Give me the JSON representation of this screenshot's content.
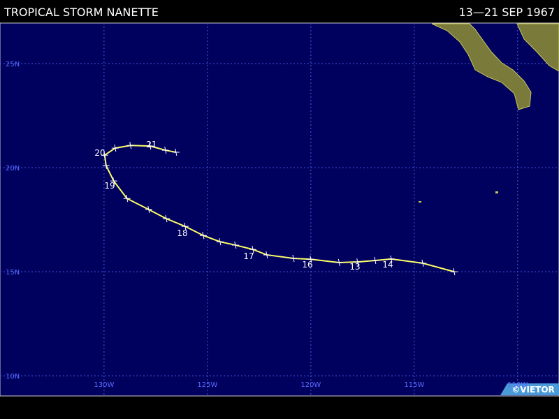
{
  "chart_data": {
    "type": "line",
    "title": "TROPICAL STORM NANETTE",
    "subtitle": "13—21 SEP 1967",
    "credit": "©VIETOR",
    "color": "#ffff66",
    "x": [
      -113.07,
      -114.59,
      -116.11,
      -116.89,
      -117.74,
      -118.63,
      -120.0,
      -120.84,
      -122.13,
      -122.8,
      -123.65,
      -124.39,
      -125.2,
      -126.08,
      -126.99,
      -127.84,
      -128.89,
      -129.53,
      -129.9,
      -129.97,
      -129.46,
      -128.72,
      -127.77,
      -127.03,
      -126.52
    ],
    "values": [
      15.0,
      15.41,
      15.61,
      15.54,
      15.47,
      15.44,
      15.6,
      15.64,
      15.81,
      16.07,
      16.28,
      16.44,
      16.74,
      17.18,
      17.55,
      17.99,
      18.52,
      19.36,
      20.1,
      20.6,
      20.94,
      21.07,
      21.04,
      20.84,
      20.74
    ],
    "day_labels": [
      "13",
      "14",
      "16",
      "17",
      "18",
      "19",
      "20",
      "21"
    ],
    "xlim": [
      -135.03,
      -108.0
    ],
    "ylim": [
      9.03,
      26.95
    ],
    "xticks": [
      {
        "value": -130,
        "label": "130W"
      },
      {
        "value": -125,
        "label": "125W"
      },
      {
        "value": -120,
        "label": "120W"
      },
      {
        "value": -115,
        "label": "115W"
      },
      {
        "value": -110,
        "label": "110W"
      }
    ],
    "yticks": [
      {
        "value": 25,
        "label": "25N"
      },
      {
        "value": 20,
        "label": "20N"
      },
      {
        "value": 15,
        "label": "15N"
      },
      {
        "value": 10,
        "label": "10N"
      }
    ],
    "grid": true
  }
}
